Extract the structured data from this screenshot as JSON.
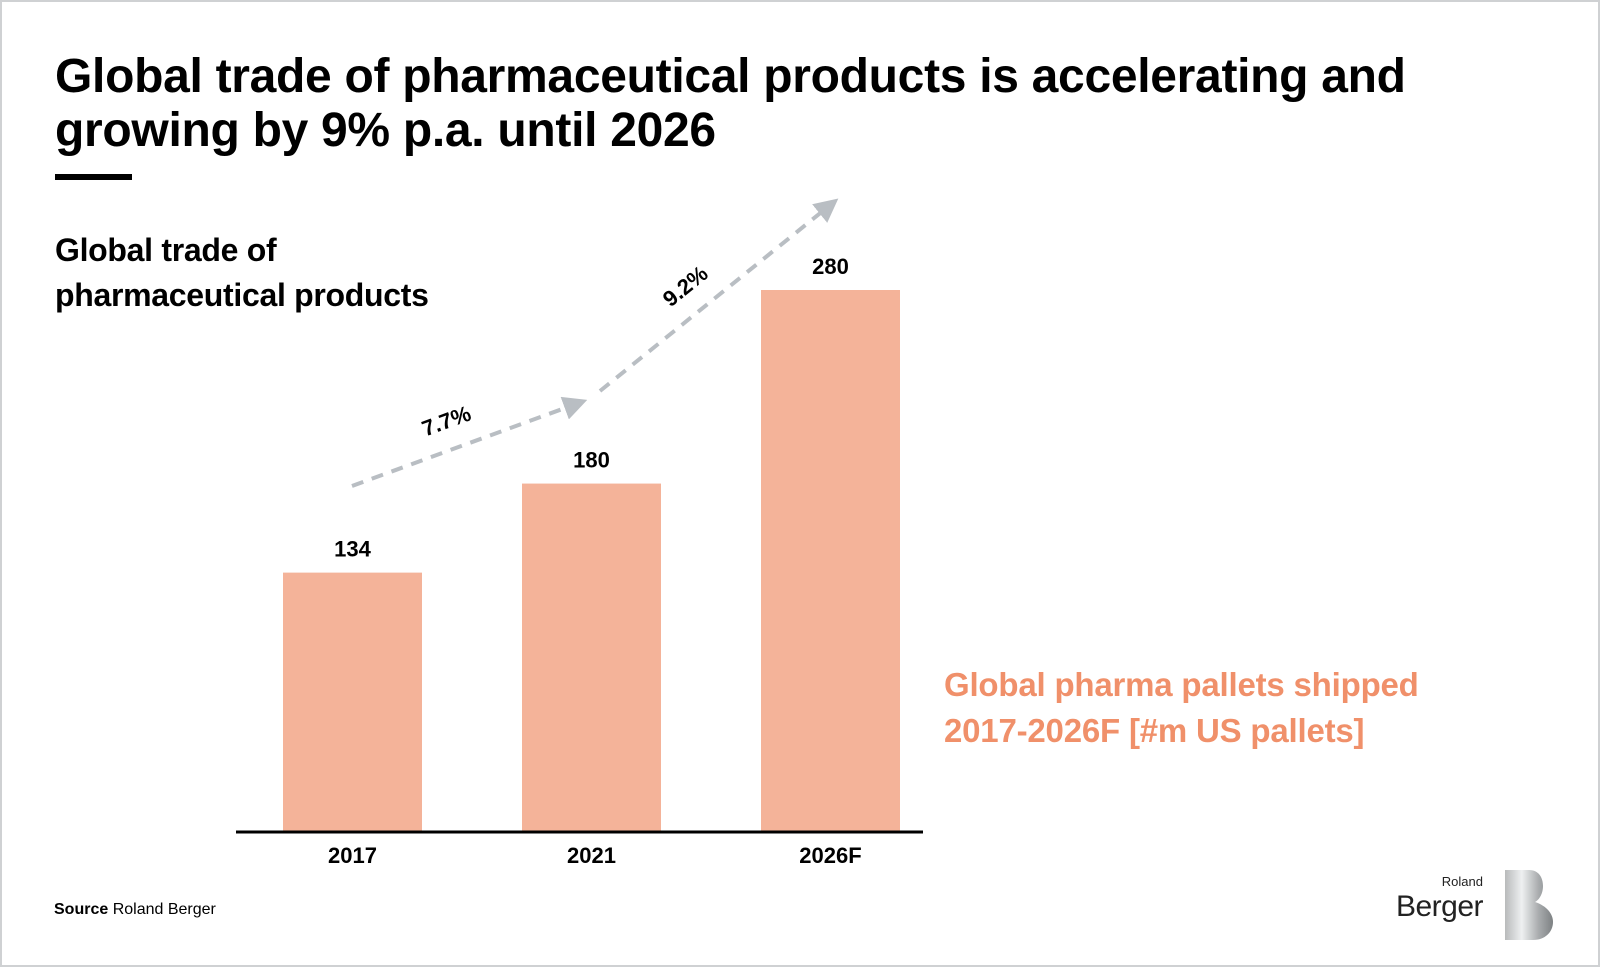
{
  "title": "Global trade of pharmaceutical products is accelerating and growing by 9% p.a. until 2026",
  "subtitle_lines": [
    "Global trade of",
    "pharmaceutical products"
  ],
  "series_label_lines": [
    "Global pharma pallets shipped",
    "2017-2026F [#m US pallets]"
  ],
  "source": {
    "label": "Source",
    "text": "Roland Berger"
  },
  "logo": {
    "line1": "Roland",
    "line2": "Berger",
    "mark": "B"
  },
  "colors": {
    "bar": "#f4b399",
    "accent_text": "#f0906a",
    "arrow": "#b9bec3"
  },
  "chart_data": {
    "type": "bar",
    "categories": [
      "2017",
      "2021",
      "2026F"
    ],
    "values": [
      134,
      180,
      280
    ],
    "value_labels": [
      "134",
      "180",
      "280"
    ],
    "growth_annotations": [
      {
        "from": "2017",
        "to": "2021",
        "label": "7.7%"
      },
      {
        "from": "2021",
        "to": "2026F",
        "label": "9.2%"
      }
    ],
    "grid": false,
    "ylim": [
      0,
      280
    ]
  }
}
